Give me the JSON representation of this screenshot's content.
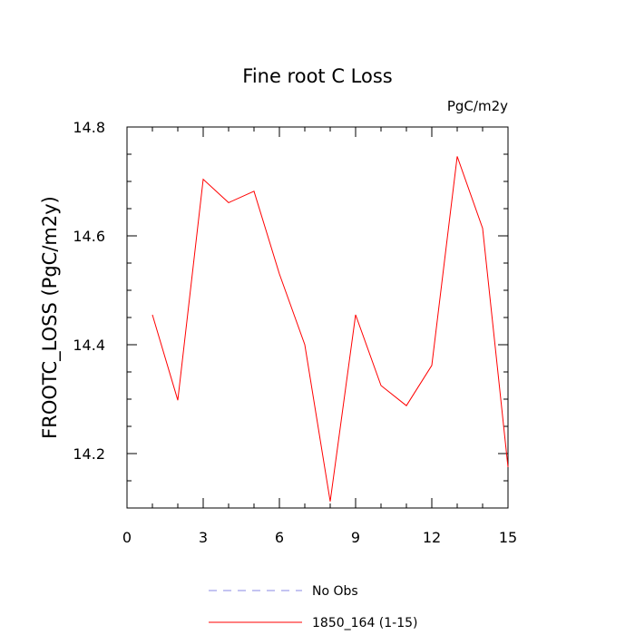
{
  "chart_data": {
    "type": "line",
    "title": "Fine root C Loss",
    "units": "PgC/m2y",
    "ylabel": "FROOTC_LOSS  (PgC/m2y)",
    "xlabel": "",
    "xlim": [
      0,
      15
    ],
    "ylim": [
      14.1,
      14.8
    ],
    "xticks": [
      0,
      3,
      6,
      9,
      12,
      15
    ],
    "yticks": [
      14.2,
      14.4,
      14.6,
      14.8
    ],
    "x_minor_step": 1,
    "y_minor_step": 0.05,
    "grid": false,
    "legend_position": "bottom",
    "series": [
      {
        "name": "No Obs",
        "color": "#8a8ae6",
        "dash": "dashed",
        "x": [],
        "values": []
      },
      {
        "name": "1850_164 (1-15)",
        "color": "#ff0000",
        "dash": "solid",
        "x": [
          1,
          2,
          3,
          4,
          5,
          6,
          7,
          8,
          9,
          10,
          11,
          12,
          13,
          14,
          15
        ],
        "values": [
          14.455,
          14.298,
          14.704,
          14.661,
          14.682,
          14.53,
          14.4,
          14.112,
          14.455,
          14.325,
          14.288,
          14.362,
          14.746,
          14.614,
          14.175
        ]
      }
    ]
  }
}
